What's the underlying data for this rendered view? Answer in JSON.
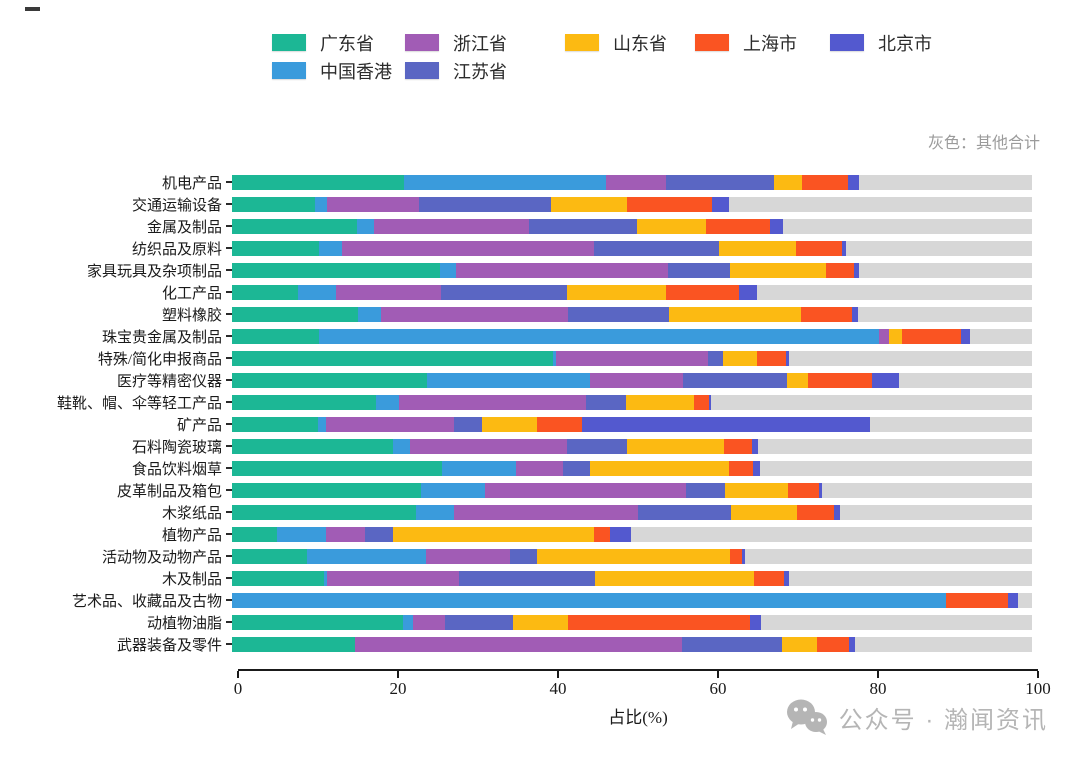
{
  "legend": {
    "items": [
      {
        "label": "广东省",
        "color": "#1cb795"
      },
      {
        "label": "浙江省",
        "color": "#a15cb5"
      },
      {
        "label": "山东省",
        "color": "#fcba12"
      },
      {
        "label": "上海市",
        "color": "#fa5422"
      },
      {
        "label": "北京市",
        "color": "#5359cf"
      },
      {
        "label": "中国香港",
        "color": "#3a9bdc"
      },
      {
        "label": "江苏省",
        "color": "#5a66c3"
      }
    ]
  },
  "watermark": {
    "icon": "wechat-icon",
    "text": "公众号 · 瀚闻资讯"
  },
  "chart_data": {
    "type": "bar",
    "orientation": "horizontal",
    "stacked": true,
    "unit": "percent",
    "title": "",
    "xlabel": "占比(%)",
    "note": "灰色：其他合计",
    "xlim": [
      0,
      100
    ],
    "xticks": [
      0,
      20,
      40,
      60,
      80,
      100
    ],
    "grid": false,
    "legend_position": "top",
    "other_label": "其他合计",
    "other_color": "#d7d7d7",
    "series_names": [
      "广东省",
      "中国香港",
      "浙江省",
      "江苏省",
      "山东省",
      "上海市",
      "北京市"
    ],
    "series_colors": [
      "#1cb795",
      "#3a9bdc",
      "#a15cb5",
      "#5a66c3",
      "#fcba12",
      "#fa5422",
      "#5359cf"
    ],
    "rows": [
      {
        "category": "机电产品",
        "values": [
          21.5,
          25.3,
          7.4,
          13.6,
          3.4,
          5.8,
          1.4
        ]
      },
      {
        "category": "交通运输设备",
        "values": [
          10.4,
          1.5,
          11.5,
          16.5,
          9.5,
          10.6,
          2.1
        ]
      },
      {
        "category": "金属及制品",
        "values": [
          15.6,
          2.2,
          19.3,
          13.5,
          8.7,
          7.9,
          1.7
        ]
      },
      {
        "category": "纺织品及原料",
        "values": [
          10.9,
          2.8,
          31.5,
          15.7,
          9.6,
          5.8,
          0.5
        ]
      },
      {
        "category": "家具玩具及杂项制品",
        "values": [
          26.0,
          2.0,
          26.5,
          7.7,
          12.0,
          3.6,
          0.6
        ]
      },
      {
        "category": "化工产品",
        "values": [
          8.3,
          4.7,
          13.1,
          15.8,
          12.3,
          9.2,
          2.2
        ]
      },
      {
        "category": "塑料橡胶",
        "values": [
          15.7,
          2.9,
          23.4,
          12.6,
          16.5,
          6.4,
          0.8
        ]
      },
      {
        "category": "珠宝贵金属及制品",
        "values": [
          10.9,
          70.0,
          1.2,
          0,
          1.6,
          7.4,
          1.1
        ]
      },
      {
        "category": "特殊/简化申报商品",
        "values": [
          40.1,
          0.4,
          19.0,
          1.9,
          4.2,
          3.7,
          0.3
        ]
      },
      {
        "category": "医疗等精密仪器",
        "values": [
          24.4,
          20.3,
          11.7,
          13.0,
          2.6,
          8.0,
          3.4
        ]
      },
      {
        "category": "鞋靴、帽、伞等轻工产品",
        "values": [
          18.0,
          2.9,
          23.4,
          5.0,
          8.5,
          1.8,
          0.3
        ]
      },
      {
        "category": "矿产品",
        "values": [
          10.8,
          1.0,
          16.0,
          3.4,
          6.9,
          5.6,
          36.0
        ]
      },
      {
        "category": "石料陶瓷玻璃",
        "values": [
          20.1,
          2.2,
          19.6,
          7.5,
          12.1,
          3.5,
          0.8
        ]
      },
      {
        "category": "食品饮料烟草",
        "values": [
          26.2,
          9.3,
          5.9,
          3.4,
          17.3,
          3.0,
          0.9
        ]
      },
      {
        "category": "皮革制品及箱包",
        "values": [
          23.6,
          8.0,
          25.1,
          4.9,
          7.9,
          3.9,
          0.3
        ]
      },
      {
        "category": "木浆纸品",
        "values": [
          23.0,
          4.7,
          23.0,
          11.7,
          8.2,
          4.6,
          0.8
        ]
      },
      {
        "category": "植物产品",
        "values": [
          5.6,
          6.2,
          4.8,
          3.5,
          25.2,
          1.9,
          2.7
        ]
      },
      {
        "category": "活动物及动物产品",
        "values": [
          9.4,
          14.9,
          10.5,
          3.3,
          24.2,
          1.5,
          0.3
        ]
      },
      {
        "category": "木及制品",
        "values": [
          11.5,
          0.4,
          16.5,
          17.0,
          19.9,
          3.7,
          0.6
        ]
      },
      {
        "category": "艺术品、收藏品及古物",
        "values": [
          0,
          89.2,
          0,
          0,
          0,
          7.8,
          1.2
        ]
      },
      {
        "category": "动植物油脂",
        "values": [
          21.4,
          1.2,
          4.0,
          8.5,
          6.9,
          22.8,
          1.3
        ]
      },
      {
        "category": "武器装备及零件",
        "values": [
          15.4,
          0,
          40.8,
          12.5,
          4.4,
          4.0,
          0.8
        ]
      }
    ]
  }
}
